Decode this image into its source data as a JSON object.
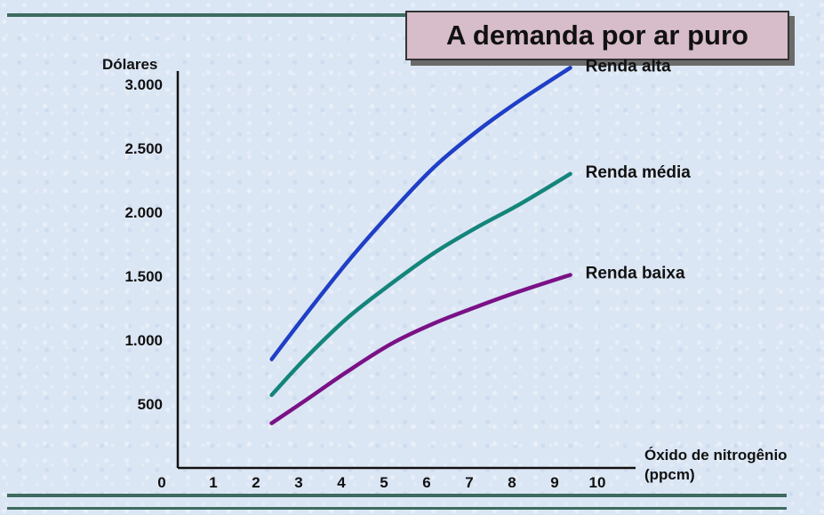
{
  "title": "A demanda por ar puro",
  "chart_data": {
    "type": "line",
    "ylabel": "Dólares",
    "xlabel_lines": [
      "Óxido de nitrogênio",
      "(ppcm)"
    ],
    "origin_label": "0",
    "x_ticks": [
      1,
      2,
      3,
      4,
      5,
      6,
      7,
      8,
      9,
      10
    ],
    "y_ticks": [
      {
        "value": 500,
        "label": "500"
      },
      {
        "value": 1000,
        "label": "1.000"
      },
      {
        "value": 1500,
        "label": "1.500"
      },
      {
        "value": 2000,
        "label": "2.000"
      },
      {
        "value": 2500,
        "label": "2.500"
      },
      {
        "value": 3000,
        "label": "3.000"
      }
    ],
    "xlim": [
      0,
      11
    ],
    "ylim": [
      0,
      3200
    ],
    "series": [
      {
        "name": "Renda alta",
        "color": "#1f3fc7",
        "x": [
          2.2,
          3,
          4,
          5,
          6,
          7,
          8,
          9.2
        ],
        "y": [
          850,
          1200,
          1620,
          2000,
          2350,
          2630,
          2870,
          3130
        ]
      },
      {
        "name": "Renda média",
        "color": "#14857a",
        "x": [
          2.2,
          3,
          4,
          5,
          6,
          7,
          8,
          9.2
        ],
        "y": [
          570,
          860,
          1180,
          1440,
          1680,
          1880,
          2060,
          2300
        ]
      },
      {
        "name": "Renda baixa",
        "color": "#7a1186",
        "x": [
          2.2,
          3,
          4,
          5,
          6,
          7,
          8,
          9.2
        ],
        "y": [
          350,
          530,
          760,
          970,
          1130,
          1260,
          1380,
          1510
        ]
      }
    ]
  }
}
